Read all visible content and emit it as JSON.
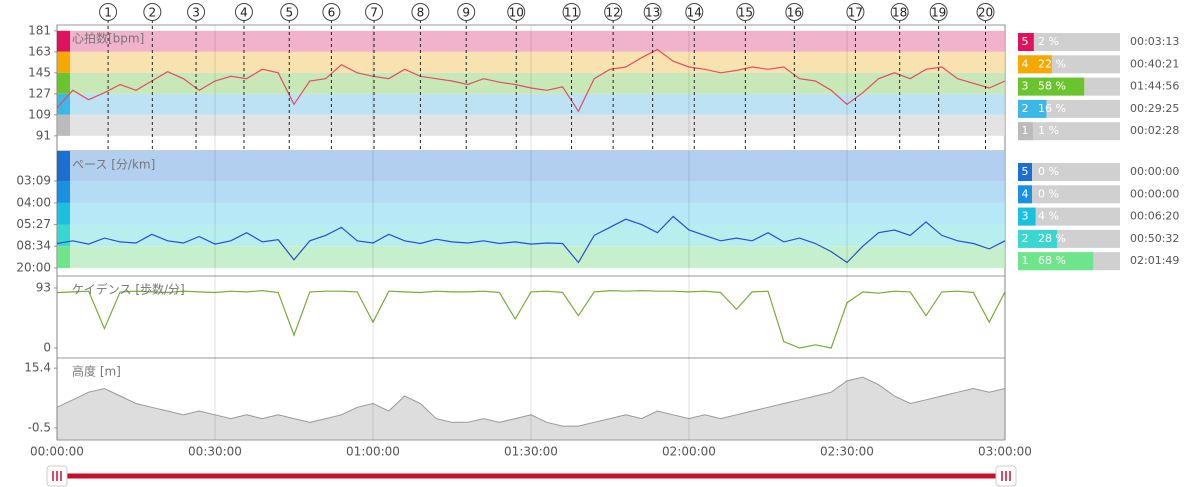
{
  "chart_data": [
    {
      "type": "line",
      "title": "心拍数[bpm]",
      "color": "#e05060",
      "xlim": [
        0,
        180
      ],
      "ylim": [
        78,
        186
      ],
      "yticks": [
        181,
        163,
        145,
        127,
        109,
        91
      ],
      "x": [
        0,
        3,
        6,
        9,
        12,
        15,
        18,
        21,
        24,
        27,
        30,
        33,
        36,
        39,
        42,
        45,
        48,
        51,
        54,
        57,
        60,
        63,
        66,
        69,
        72,
        75,
        78,
        81,
        84,
        87,
        90,
        93,
        96,
        99,
        102,
        105,
        108,
        111,
        114,
        117,
        120,
        123,
        126,
        129,
        132,
        135,
        138,
        141,
        144,
        147,
        150,
        153,
        156,
        159,
        162,
        165,
        168,
        171,
        174,
        177,
        180
      ],
      "values": [
        115,
        130,
        122,
        128,
        135,
        130,
        138,
        146,
        140,
        130,
        138,
        142,
        140,
        148,
        145,
        118,
        138,
        140,
        152,
        145,
        142,
        140,
        148,
        142,
        140,
        138,
        135,
        140,
        137,
        135,
        132,
        130,
        133,
        112,
        140,
        148,
        150,
        158,
        165,
        155,
        150,
        148,
        145,
        147,
        150,
        148,
        150,
        140,
        138,
        130,
        118,
        128,
        140,
        145,
        140,
        148,
        150,
        140,
        136,
        132,
        138
      ],
      "laps": {
        "labels": [
          "1",
          "2",
          "3",
          "4",
          "5",
          "6",
          "7",
          "8",
          "9",
          "10",
          "11",
          "12",
          "13",
          "14",
          "15",
          "16",
          "17",
          "18",
          "19",
          "20"
        ],
        "x": [
          9.7,
          18.1,
          26.4,
          35.5,
          44.1,
          52.1,
          60.2,
          69.0,
          77.7,
          87.2,
          97.7,
          105.6,
          113.1,
          121.0,
          130.7,
          140.0,
          151.6,
          160.0,
          167.4,
          176.3
        ]
      },
      "zones": {
        "categories": [
          "5",
          "4",
          "3",
          "2",
          "1"
        ],
        "values": [
          2,
          22,
          58,
          16,
          1
        ],
        "value_labels": [
          "2 %",
          "22 %",
          "58 %",
          "16 %",
          "1 %"
        ],
        "times": [
          "00:03:13",
          "00:40:21",
          "01:44:56",
          "00:29:25",
          "00:02:28"
        ],
        "colors": [
          "#e0115f",
          "#f5a800",
          "#6ac42d",
          "#3bb8e8",
          "#bbbbbb"
        ],
        "band_colors": [
          "#f0b3cb",
          "#f8e3b0",
          "#c9e8b8",
          "#bde2f3",
          "#e3e3e3"
        ]
      }
    },
    {
      "type": "line",
      "title": "ペース [分/km]",
      "color": "#2a4fcc",
      "xlim": [
        0,
        180
      ],
      "ylim": [
        1.5,
        24.6
      ],
      "yticks": [
        {
          "value": 19.05,
          "label": "03:09"
        },
        {
          "value": 15,
          "label": "04:00"
        },
        {
          "value": 11.01,
          "label": "05:27"
        },
        {
          "value": 7.0,
          "label": "08:34"
        },
        {
          "value": 3,
          "label": "20:00"
        }
      ],
      "x": [
        0,
        3,
        6,
        9,
        12,
        15,
        18,
        21,
        24,
        27,
        30,
        33,
        36,
        39,
        42,
        45,
        48,
        51,
        54,
        57,
        60,
        63,
        66,
        69,
        72,
        75,
        78,
        81,
        84,
        87,
        90,
        93,
        96,
        99,
        102,
        105,
        108,
        111,
        114,
        117,
        120,
        123,
        126,
        129,
        132,
        135,
        138,
        141,
        144,
        147,
        150,
        153,
        156,
        159,
        162,
        165,
        168,
        171,
        174,
        177,
        180
      ],
      "values": [
        7.5,
        8.0,
        7.4,
        8.5,
        7.8,
        7.6,
        9.2,
        8.0,
        7.6,
        8.8,
        7.4,
        8.0,
        9.5,
        7.8,
        8.2,
        4.5,
        8.0,
        9.0,
        10.5,
        8.0,
        7.6,
        9.2,
        8.0,
        7.5,
        8.3,
        7.8,
        7.6,
        8.0,
        7.5,
        7.8,
        7.4,
        7.6,
        7.5,
        4.0,
        9.0,
        10.5,
        12.0,
        11.0,
        9.5,
        12.5,
        10.0,
        9.0,
        8.0,
        8.5,
        8.0,
        9.5,
        7.8,
        8.5,
        7.5,
        6.0,
        4.0,
        7.0,
        9.5,
        10.0,
        9.0,
        11.5,
        9.0,
        8.0,
        7.5,
        6.5,
        8.0
      ],
      "zones": {
        "categories": [
          "5",
          "4",
          "3",
          "2",
          "1"
        ],
        "values": [
          0,
          0,
          4,
          28,
          68
        ],
        "value_labels": [
          "0 %",
          "0 %",
          "4 %",
          "28 %",
          "68 %"
        ],
        "times": [
          "00:00:00",
          "00:00:00",
          "00:06:20",
          "00:50:32",
          "02:01:49"
        ],
        "colors": [
          "#1a6fd0",
          "#1a90e0",
          "#19c0e0",
          "#3ad6d0",
          "#6ee58a"
        ],
        "band_colors": [
          "#b3cff0",
          "#b4dcf5",
          "#b6e8f7",
          "#b9eeee",
          "#c5f0cb"
        ]
      }
    },
    {
      "type": "line",
      "title": "ケイデンス [歩数/分]",
      "color": "#7aaa3a",
      "xlim": [
        0,
        180
      ],
      "ylim": [
        -15.5,
        111.6
      ],
      "yticks": [
        93,
        0
      ],
      "x": [
        0,
        3,
        6,
        9,
        12,
        15,
        18,
        21,
        24,
        27,
        30,
        33,
        36,
        39,
        42,
        45,
        48,
        51,
        54,
        57,
        60,
        63,
        66,
        69,
        72,
        75,
        78,
        81,
        84,
        87,
        90,
        93,
        96,
        99,
        102,
        105,
        108,
        111,
        114,
        117,
        120,
        123,
        126,
        129,
        132,
        135,
        138,
        141,
        144,
        147,
        150,
        153,
        156,
        159,
        162,
        165,
        168,
        171,
        174,
        177,
        180
      ],
      "values": [
        86,
        87,
        88,
        30,
        87,
        88,
        87,
        86,
        88,
        87,
        86,
        88,
        87,
        89,
        86,
        20,
        87,
        88,
        88,
        87,
        40,
        88,
        87,
        86,
        88,
        87,
        87,
        88,
        86,
        45,
        87,
        88,
        86,
        50,
        87,
        89,
        88,
        89,
        88,
        88,
        87,
        88,
        86,
        60,
        87,
        88,
        10,
        0,
        5,
        0,
        70,
        87,
        85,
        88,
        87,
        50,
        87,
        88,
        86,
        40,
        87
      ]
    },
    {
      "type": "area",
      "title": "高度 [m]",
      "color": "#999999",
      "fill": "#dddddd",
      "xlim": [
        0,
        180
      ],
      "ylim": [
        -3.7,
        18.1
      ],
      "yticks": [
        15.4,
        -0.5
      ],
      "xticks": [
        {
          "value": 0,
          "label": "00:00:00"
        },
        {
          "value": 30,
          "label": "00:30:00"
        },
        {
          "value": 60,
          "label": "01:00:00"
        },
        {
          "value": 90,
          "label": "01:30:00"
        },
        {
          "value": 120,
          "label": "02:00:00"
        },
        {
          "value": 150,
          "label": "02:30:00"
        },
        {
          "value": 180,
          "label": "03:00:00"
        }
      ],
      "x": [
        0,
        3,
        6,
        9,
        12,
        15,
        18,
        21,
        24,
        27,
        30,
        33,
        36,
        39,
        42,
        45,
        48,
        51,
        54,
        57,
        60,
        63,
        66,
        69,
        72,
        75,
        78,
        81,
        84,
        87,
        90,
        93,
        96,
        99,
        102,
        105,
        108,
        111,
        114,
        117,
        120,
        123,
        126,
        129,
        132,
        135,
        138,
        141,
        144,
        147,
        150,
        153,
        156,
        159,
        162,
        165,
        168,
        171,
        174,
        177,
        180
      ],
      "values": [
        5,
        7,
        9,
        10,
        8,
        6,
        5,
        4,
        3,
        4,
        3,
        2,
        3,
        2,
        3,
        2,
        1,
        2,
        3,
        5,
        6,
        4,
        8,
        6,
        2,
        1,
        1,
        2,
        1,
        2,
        3,
        1,
        0,
        0,
        1,
        2,
        3,
        2,
        4,
        3,
        2,
        3,
        2,
        3,
        4,
        5,
        6,
        7,
        8,
        9,
        12,
        13,
        11,
        8,
        6,
        7,
        8,
        9,
        10,
        9,
        10
      ]
    }
  ]
}
